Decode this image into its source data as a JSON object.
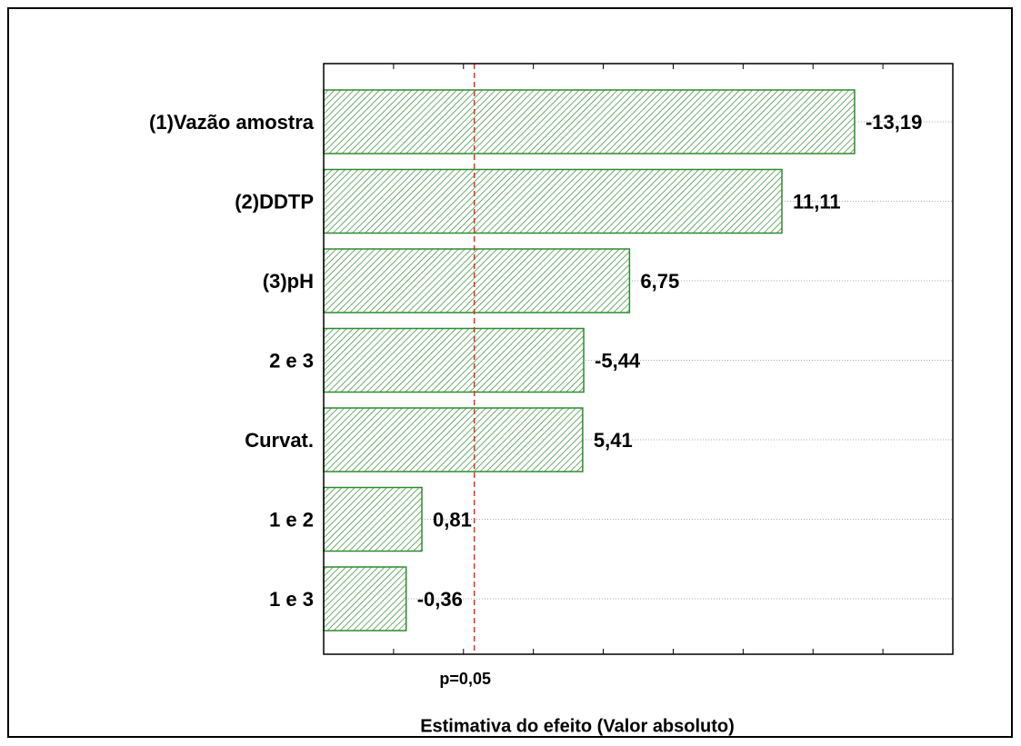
{
  "chart_data": {
    "type": "bar",
    "orientation": "horizontal",
    "xlabel": "Estimativa do efeito (Valor absoluto)",
    "categories": [
      "(1)Vazão amostra",
      "(2)DDTP",
      "(3)pH",
      "2 e 3",
      "Curvat.",
      "1 e 2",
      "1 e 3"
    ],
    "values": [
      -13.19,
      11.11,
      6.75,
      -5.44,
      5.41,
      0.81,
      -0.36
    ],
    "value_labels": [
      "-13,19",
      "11,11",
      "6,75",
      "-5,44",
      "5,41",
      "0,81",
      "-0,36"
    ],
    "color": "#2e8b2e",
    "xlim": [
      -2,
      16
    ],
    "xticks": [
      0,
      2,
      4,
      6,
      8,
      10,
      12,
      14
    ],
    "reference_line": {
      "value": 2.31,
      "label": "p=0,05",
      "color": "#e0302a"
    },
    "grid": true
  }
}
